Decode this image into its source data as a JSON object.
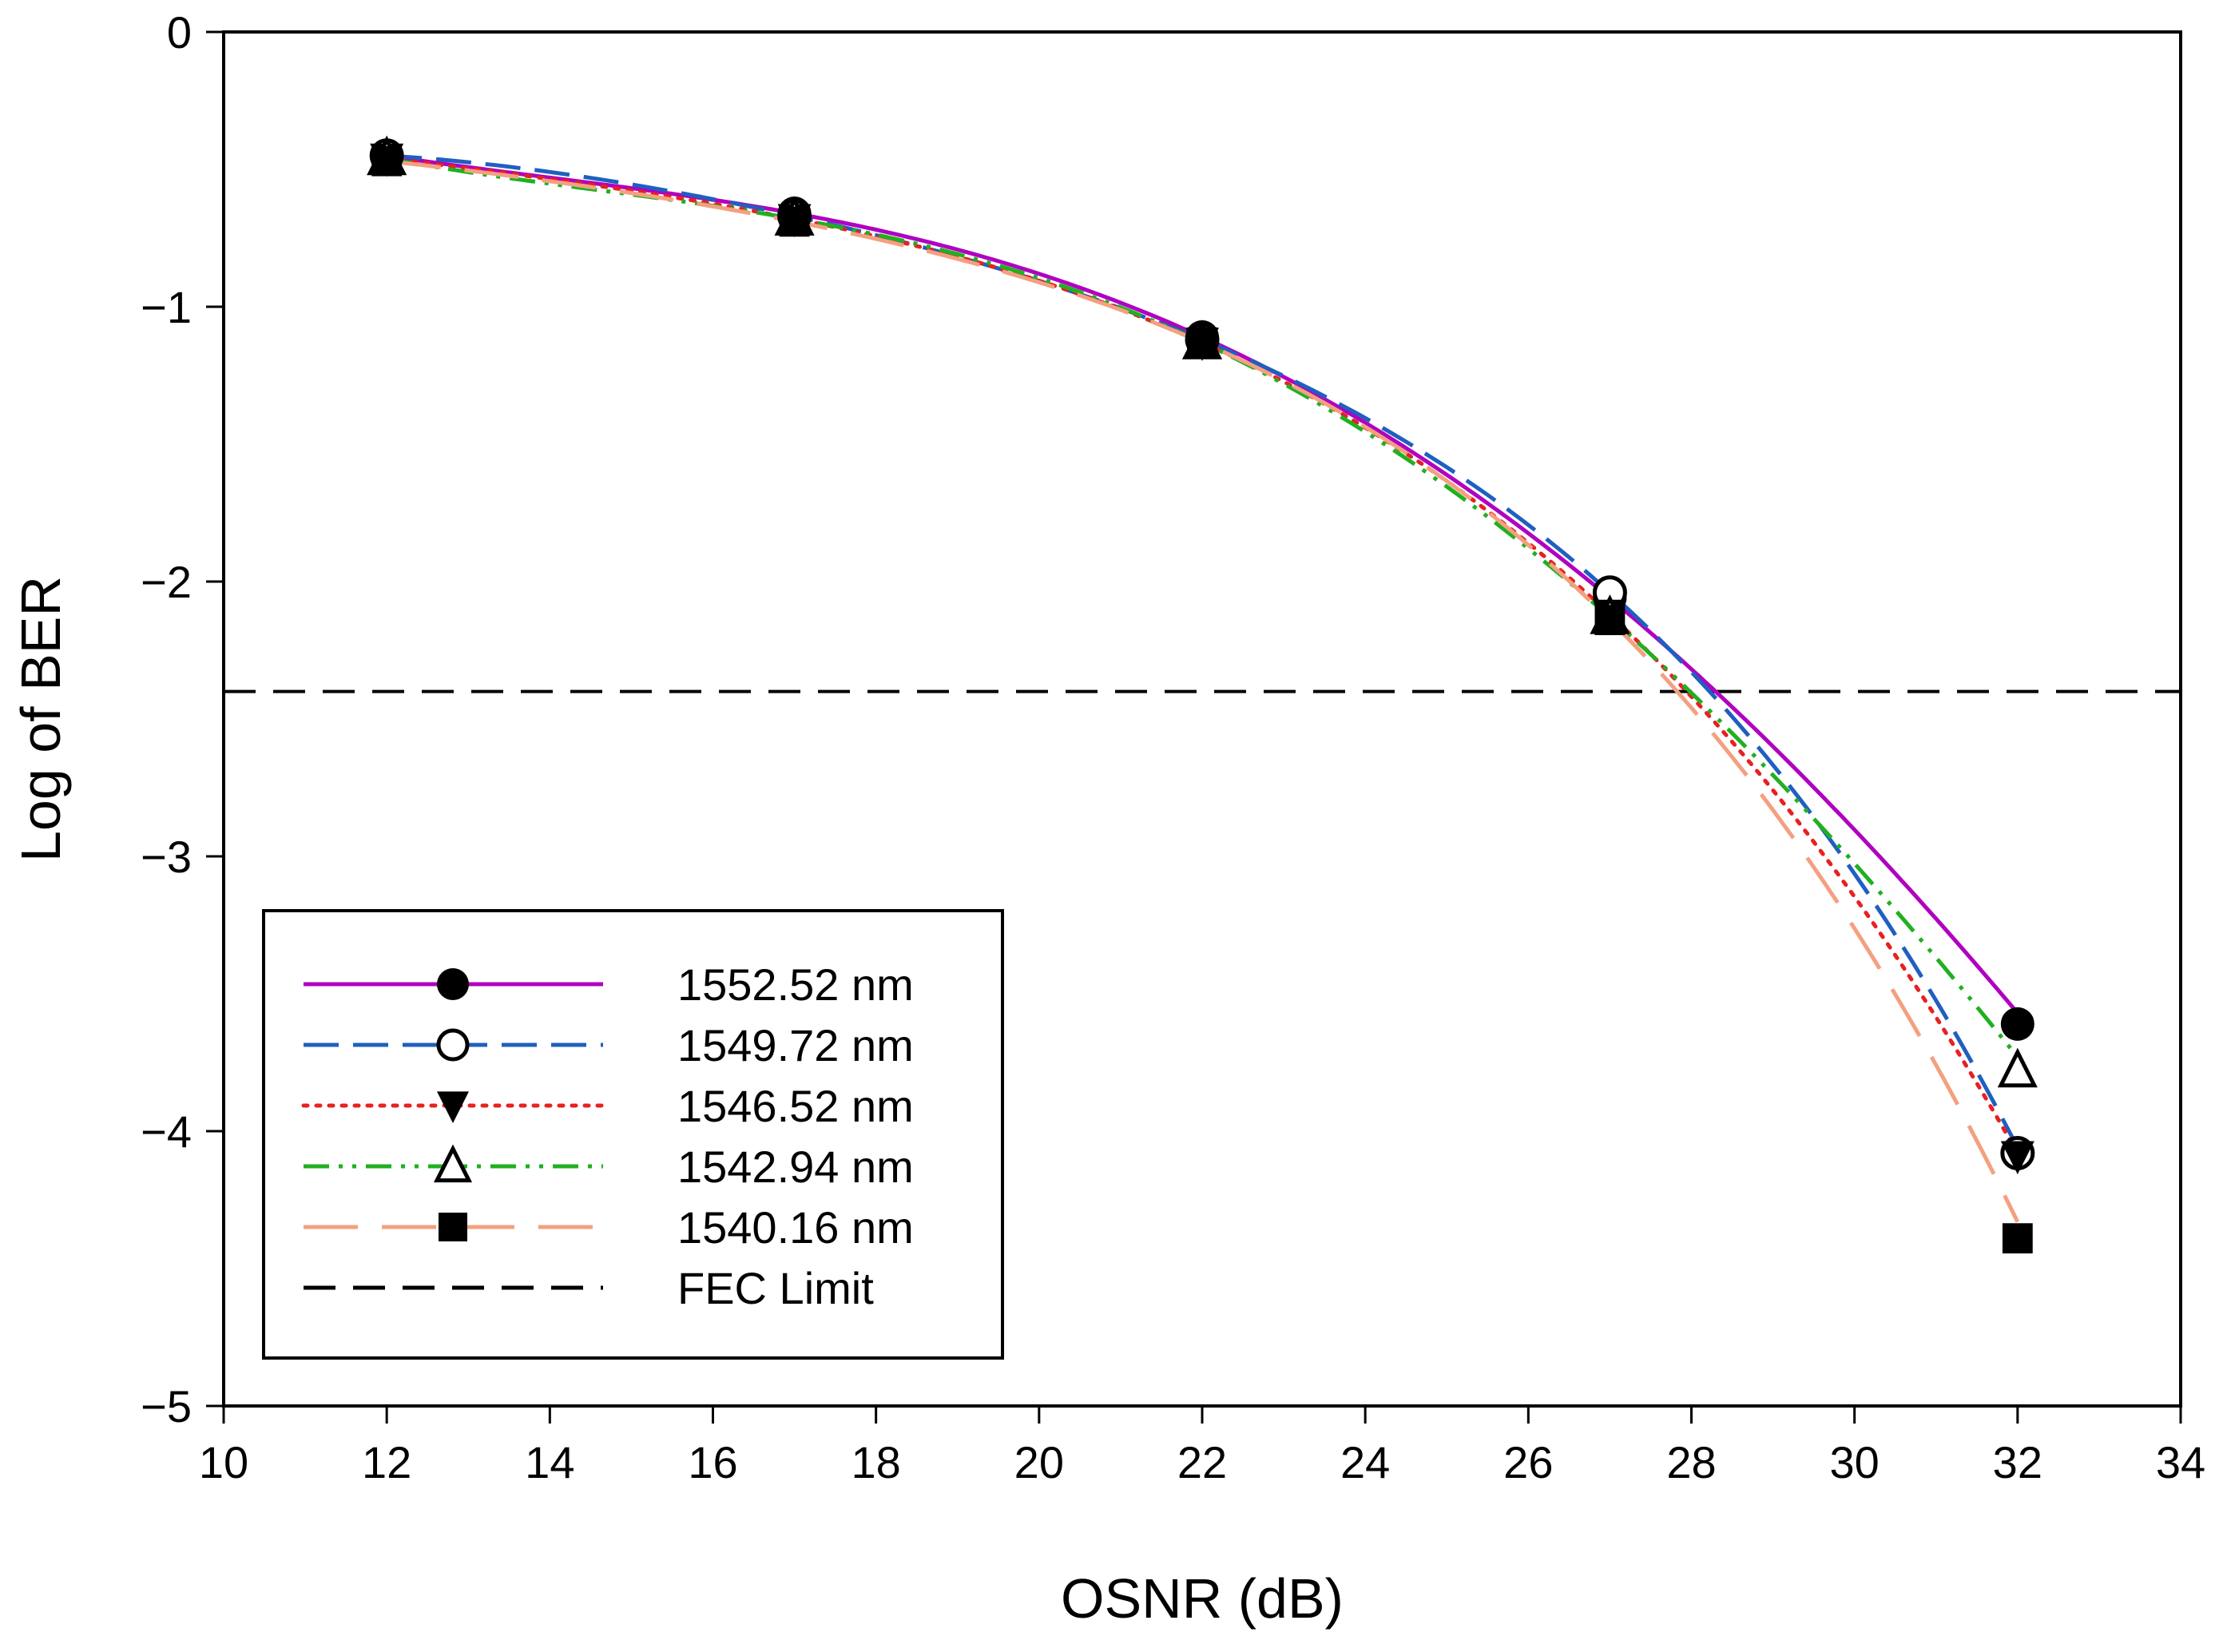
{
  "chart_data": {
    "type": "line",
    "title": "",
    "xlabel": "OSNR (dB)",
    "ylabel": "Log of BER",
    "xlim": [
      10,
      34
    ],
    "ylim": [
      -5,
      0
    ],
    "xticks": [
      10,
      12,
      14,
      16,
      18,
      20,
      22,
      24,
      26,
      28,
      30,
      32,
      34
    ],
    "yticks": [
      0,
      -1,
      -2,
      -3,
      -4,
      -5
    ],
    "ytick_labels": [
      "0",
      "−1",
      "−2",
      "−3",
      "−4",
      "−5"
    ],
    "x": [
      12,
      17,
      22,
      27,
      32
    ],
    "grid": false,
    "legend_position": "bottom-left",
    "series": [
      {
        "name": "1552.52 nm",
        "marker": "filled-circle",
        "color": "#B000C0",
        "dash": "solid",
        "values": [
          -0.45,
          -0.66,
          -1.11,
          -2.06,
          -3.61
        ],
        "curve_end": -3.57
      },
      {
        "name": "1549.72 nm",
        "marker": "open-circle",
        "color": "#1F5FC0",
        "dash": "long-dash",
        "values": [
          -0.45,
          -0.67,
          -1.12,
          -2.04,
          -4.08
        ],
        "curve_end": -4.06
      },
      {
        "name": "1546.52 nm",
        "marker": "filled-triangle-down",
        "color": "#E82020",
        "dash": "dotted",
        "values": [
          -0.46,
          -0.68,
          -1.13,
          -2.12,
          -4.09
        ],
        "curve_end": -4.08
      },
      {
        "name": "1542.94 nm",
        "marker": "open-triangle-up",
        "color": "#20B020",
        "dash": "dash-dot-dot",
        "values": [
          -0.46,
          -0.68,
          -1.13,
          -2.13,
          -3.78
        ],
        "curve_end": -3.73
      },
      {
        "name": "1540.16 nm",
        "marker": "filled-square",
        "color": "#F4A080",
        "dash": "very-long-dash",
        "values": [
          -0.47,
          -0.69,
          -1.13,
          -2.14,
          -4.39
        ],
        "curve_end": -4.33
      }
    ],
    "reference_lines": [
      {
        "name": "FEC Limit",
        "y": -2.4,
        "color": "#000000",
        "dash": "dashed"
      }
    ]
  }
}
